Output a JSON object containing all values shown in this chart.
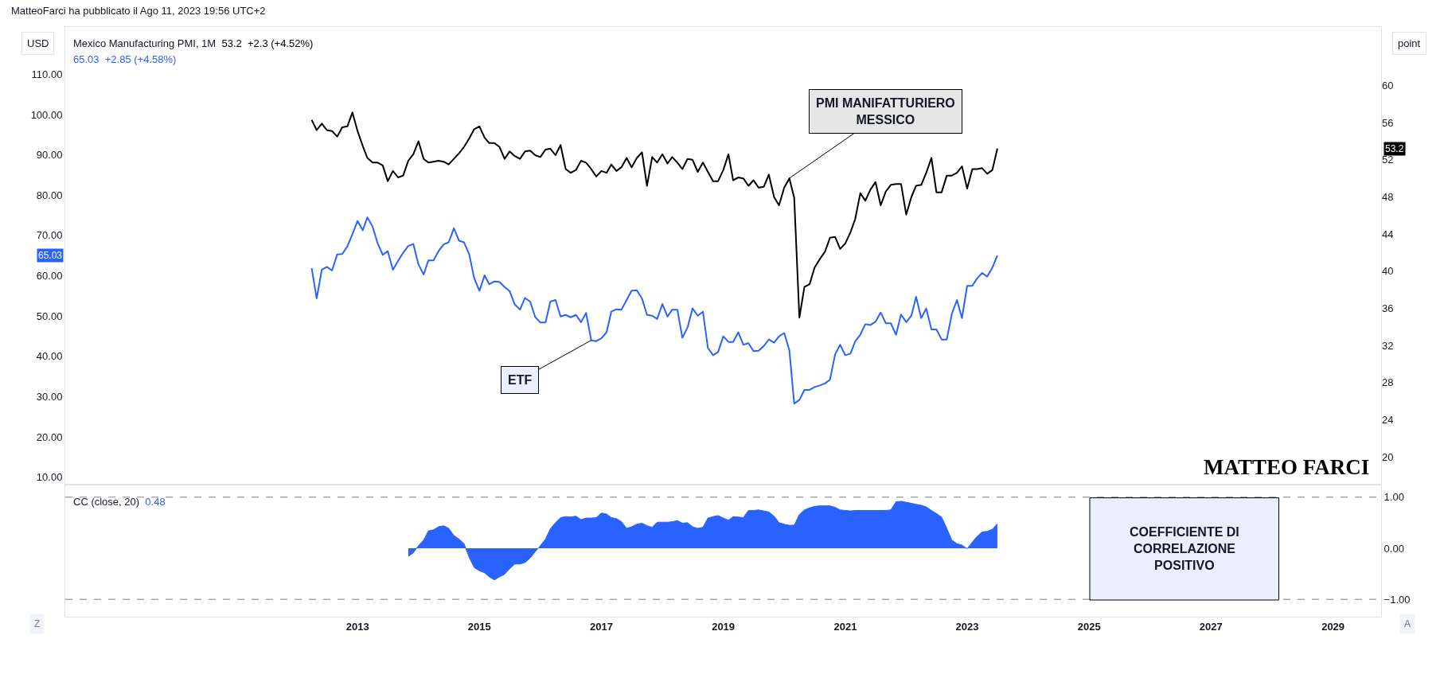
{
  "chart_data": [
    {
      "type": "line",
      "ylabel": "USD",
      "y2label": "point",
      "legend": "top left",
      "tick_labels": [
        "y",
        "y2"
      ],
      "annotations": [
        "53.2  +2.3 (+4.52%)",
        "65.03  +2.85 (+4.58%)",
        "MatteoFarci ha pubblicato il Ago 11, 2023 19:56 UTC+2",
        {
          "text": "PMI MANIFATTURIERO\nMESSICO",
          "x": "2020-02",
          "y": 84.2
        },
        {
          "text": "ETF",
          "x": "2016-11",
          "y": 44.0
        },
        "MATTEO FARCI",
        "53.2",
        "65.03"
      ],
      "x": [
        "2012-04",
        "2012-05",
        "2012-06",
        "2012-07",
        "2012-08",
        "2012-09",
        "2012-10",
        "2012-11",
        "2012-12",
        "2013-01",
        "2013-02",
        "2013-03",
        "2013-04",
        "2013-05",
        "2013-06",
        "2013-07",
        "2013-08",
        "2013-09",
        "2013-10",
        "2013-11",
        "2013-12",
        "2014-01",
        "2014-02",
        "2014-03",
        "2014-04",
        "2014-05",
        "2014-06",
        "2014-07",
        "2014-08",
        "2014-09",
        "2014-10",
        "2014-11",
        "2014-12",
        "2015-01",
        "2015-02",
        "2015-03",
        "2015-04",
        "2015-05",
        "2015-06",
        "2015-07",
        "2015-08",
        "2015-09",
        "2015-10",
        "2015-11",
        "2015-12",
        "2016-01",
        "2016-02",
        "2016-03",
        "2016-04",
        "2016-05",
        "2016-06",
        "2016-07",
        "2016-08",
        "2016-09",
        "2016-10",
        "2016-11",
        "2016-12",
        "2017-01",
        "2017-02",
        "2017-03",
        "2017-04",
        "2017-05",
        "2017-06",
        "2017-07",
        "2017-08",
        "2017-09",
        "2017-10",
        "2017-11",
        "2017-12",
        "2018-01",
        "2018-02",
        "2018-03",
        "2018-04",
        "2018-05",
        "2018-06",
        "2018-07",
        "2018-08",
        "2018-09",
        "2018-10",
        "2018-11",
        "2018-12",
        "2019-01",
        "2019-02",
        "2019-03",
        "2019-04",
        "2019-05",
        "2019-06",
        "2019-07",
        "2019-08",
        "2019-09",
        "2019-10",
        "2019-11",
        "2019-12",
        "2020-01",
        "2020-02",
        "2020-03",
        "2020-04",
        "2020-05",
        "2020-06",
        "2020-07",
        "2020-08",
        "2020-09",
        "2020-10",
        "2020-11",
        "2020-12",
        "2021-01",
        "2021-02",
        "2021-03",
        "2021-04",
        "2021-05",
        "2021-06",
        "2021-07",
        "2021-08",
        "2021-09",
        "2021-10",
        "2021-11",
        "2021-12",
        "2022-01",
        "2022-02",
        "2022-03",
        "2022-04",
        "2022-05",
        "2022-06",
        "2022-07",
        "2022-08",
        "2022-09",
        "2022-10",
        "2022-11",
        "2022-12",
        "2023-01",
        "2023-02",
        "2023-03",
        "2023-04",
        "2023-05",
        "2023-06",
        "2023-07"
      ],
      "xlim": [
        "2008-03-17",
        "2029-10-16"
      ],
      "ylim": [
        8.4,
        121.7
      ],
      "yticks": [
        {
          "value": 10,
          "label": "10.00"
        },
        {
          "value": 20,
          "label": "20.00"
        },
        {
          "value": 30,
          "label": "30.00"
        },
        {
          "value": 40,
          "label": "40.00"
        },
        {
          "value": 50,
          "label": "50.00"
        },
        {
          "value": 60,
          "label": "60.00"
        },
        {
          "value": 70,
          "label": "70.00"
        },
        {
          "value": 80,
          "label": "80.00"
        },
        {
          "value": 90,
          "label": "90.00"
        },
        {
          "value": 100,
          "label": "100.00"
        },
        {
          "value": 110,
          "label": "110.00"
        }
      ],
      "y2lim": [
        17.1,
        66.3
      ],
      "y2ticks": [
        20,
        24,
        28,
        32,
        36,
        40,
        44,
        48,
        52,
        56,
        60
      ],
      "series": [
        {
          "name": "Mexico Manufacturing PMI, 1M",
          "color": "#000000",
          "axis": "y2",
          "values": [
            56.3,
            55.2,
            55.9,
            55.2,
            55.1,
            54.5,
            55.5,
            55.6,
            57.1,
            55.1,
            53.5,
            52.2,
            51.7,
            51.7,
            51.4,
            49.7,
            50.8,
            50.1,
            50.3,
            51.9,
            52.6,
            54.0,
            52.1,
            51.7,
            51.8,
            51.9,
            51.8,
            51.5,
            52.1,
            52.7,
            53.4,
            54.3,
            55.3,
            55.6,
            54.4,
            53.8,
            53.8,
            53.4,
            52.1,
            52.9,
            52.4,
            52.1,
            52.9,
            53.0,
            52.5,
            52.3,
            53.1,
            53.2,
            52.5,
            53.6,
            51.0,
            50.6,
            50.9,
            51.9,
            51.7,
            51.0,
            50.2,
            50.8,
            50.6,
            51.5,
            50.8,
            51.2,
            52.2,
            51.2,
            52.2,
            52.8,
            49.2,
            52.3,
            51.7,
            52.6,
            51.6,
            52.3,
            51.7,
            51.0,
            52.1,
            52.0,
            50.7,
            51.7,
            50.7,
            49.7,
            49.7,
            50.9,
            52.6,
            49.8,
            50.1,
            50.0,
            49.2,
            49.8,
            49.0,
            49.1,
            50.4,
            48.0,
            47.1,
            49.0,
            50.0,
            47.9,
            35.0,
            38.3,
            38.6,
            40.4,
            41.3,
            42.1,
            43.6,
            43.7,
            42.4,
            43.0,
            44.2,
            45.6,
            48.4,
            47.6,
            48.8,
            49.6,
            47.1,
            48.6,
            49.3,
            49.4,
            49.4,
            46.1,
            48.0,
            49.2,
            49.3,
            50.6,
            52.2,
            48.5,
            48.5,
            50.3,
            50.3,
            50.6,
            51.3,
            48.9,
            51.0,
            51.0,
            51.1,
            50.5,
            50.9,
            53.2
          ]
        },
        {
          "color": "#2962ff",
          "values": [
            61.9,
            54.4,
            61.5,
            62.2,
            61.3,
            65.3,
            65.4,
            67.3,
            70.3,
            73.6,
            71.3,
            74.5,
            72.2,
            68.1,
            65.2,
            66.1,
            61.5,
            63.7,
            65.7,
            67.4,
            67.9,
            62.8,
            60.3,
            63.8,
            63.8,
            66.1,
            67.8,
            68.3,
            71.8,
            68.7,
            68.3,
            65.3,
            59.4,
            56.3,
            60.1,
            57.9,
            58.6,
            58.5,
            57.2,
            56.2,
            52.9,
            51.6,
            54.5,
            53.6,
            49.8,
            48.4,
            48.4,
            53.6,
            54.0,
            49.9,
            50.3,
            49.7,
            50.3,
            48.5,
            50.8,
            44.0,
            43.8,
            44.5,
            46.0,
            51.1,
            51.7,
            51.6,
            54.0,
            56.3,
            56.4,
            54.4,
            50.3,
            50.1,
            49.3,
            53.0,
            49.9,
            51.6,
            51.6,
            44.6,
            47.2,
            51.9,
            50.1,
            51.1,
            42.1,
            40.3,
            41.1,
            45.0,
            43.6,
            43.6,
            46.0,
            42.9,
            43.3,
            41.3,
            41.4,
            42.6,
            44.2,
            43.4,
            45.0,
            45.8,
            41.5,
            28.3,
            29.2,
            31.7,
            31.7,
            32.4,
            32.8,
            33.3,
            34.2,
            40.5,
            42.9,
            40.3,
            40.7,
            43.7,
            45.4,
            48.0,
            47.8,
            48.6,
            50.9,
            48.2,
            48.2,
            45.4,
            50.4,
            48.5,
            50.1,
            54.8,
            49.5,
            51.9,
            46.7,
            46.7,
            44.2,
            44.2,
            50.5,
            54.0,
            49.5,
            57.5,
            57.5,
            59.3,
            60.7,
            59.8,
            62.0,
            65.03
          ]
        }
      ]
    },
    {
      "type": "area",
      "legend": "top left",
      "annotations": [
        "0.48",
        "COEFFICIENTE DI\nCORRELAZIONE\nPOSITIVO",
        "Z",
        "A"
      ],
      "x": [
        "2013-11",
        "2013-12",
        "2014-01",
        "2014-02",
        "2014-03",
        "2014-04",
        "2014-05",
        "2014-06",
        "2014-07",
        "2014-08",
        "2014-09",
        "2014-10",
        "2014-11",
        "2014-12",
        "2015-01",
        "2015-02",
        "2015-03",
        "2015-04",
        "2015-05",
        "2015-06",
        "2015-07",
        "2015-08",
        "2015-09",
        "2015-10",
        "2015-11",
        "2015-12",
        "2016-01",
        "2016-02",
        "2016-03",
        "2016-04",
        "2016-05",
        "2016-06",
        "2016-07",
        "2016-08",
        "2016-09",
        "2016-10",
        "2016-11",
        "2016-12",
        "2017-01",
        "2017-02",
        "2017-03",
        "2017-04",
        "2017-05",
        "2017-06",
        "2017-07",
        "2017-08",
        "2017-09",
        "2017-10",
        "2017-11",
        "2017-12",
        "2018-01",
        "2018-02",
        "2018-03",
        "2018-04",
        "2018-05",
        "2018-06",
        "2018-07",
        "2018-08",
        "2018-09",
        "2018-10",
        "2018-11",
        "2018-12",
        "2019-01",
        "2019-02",
        "2019-03",
        "2019-04",
        "2019-05",
        "2019-06",
        "2019-07",
        "2019-08",
        "2019-09",
        "2019-10",
        "2019-11",
        "2019-12",
        "2020-01",
        "2020-02",
        "2020-03",
        "2020-04",
        "2020-05",
        "2020-06",
        "2020-07",
        "2020-08",
        "2020-09",
        "2020-10",
        "2020-11",
        "2020-12",
        "2021-01",
        "2021-02",
        "2021-03",
        "2021-04",
        "2021-05",
        "2021-06",
        "2021-07",
        "2021-08",
        "2021-09",
        "2021-10",
        "2021-11",
        "2021-12",
        "2022-01",
        "2022-02",
        "2022-03",
        "2022-04",
        "2022-05",
        "2022-06",
        "2022-07",
        "2022-08",
        "2022-09",
        "2022-10",
        "2022-11",
        "2022-12",
        "2023-01",
        "2023-02",
        "2023-03",
        "2023-04",
        "2023-05",
        "2023-06",
        "2023-07"
      ],
      "xlim": [
        "2008-03-17",
        "2029-10-16"
      ],
      "xticks": [
        "2013",
        "2015",
        "2017",
        "2019",
        "2021",
        "2023",
        "2025",
        "2027",
        "2029"
      ],
      "ylim": [
        -1.34,
        1.23
      ],
      "yticks": [
        {
          "value": 1,
          "label": "1.00"
        },
        {
          "value": 0,
          "label": "0.00"
        },
        {
          "value": -1,
          "label": "−1.00"
        }
      ],
      "ref_lines": [
        {
          "axis": "y",
          "value": 1,
          "color": "#787b86",
          "line_style": "dashed"
        },
        {
          "axis": "y",
          "value": -1,
          "color": "#787b86",
          "line_style": "dashed"
        }
      ],
      "series": [
        {
          "name": "CC (close, 20)",
          "color": "#2962ff",
          "values": [
            -0.16,
            -0.09,
            0.05,
            0.16,
            0.34,
            0.36,
            0.42,
            0.44,
            0.39,
            0.25,
            0.18,
            0.09,
            -0.18,
            -0.38,
            -0.44,
            -0.48,
            -0.56,
            -0.62,
            -0.56,
            -0.51,
            -0.4,
            -0.31,
            -0.31,
            -0.28,
            -0.19,
            -0.07,
            0.05,
            0.18,
            0.38,
            0.5,
            0.6,
            0.62,
            0.61,
            0.63,
            0.56,
            0.59,
            0.59,
            0.6,
            0.69,
            0.67,
            0.6,
            0.58,
            0.52,
            0.39,
            0.42,
            0.47,
            0.49,
            0.44,
            0.41,
            0.51,
            0.51,
            0.51,
            0.52,
            0.54,
            0.49,
            0.5,
            0.42,
            0.39,
            0.41,
            0.59,
            0.62,
            0.64,
            0.59,
            0.55,
            0.62,
            0.61,
            0.6,
            0.74,
            0.74,
            0.75,
            0.73,
            0.71,
            0.63,
            0.5,
            0.47,
            0.45,
            0.45,
            0.66,
            0.75,
            0.79,
            0.82,
            0.83,
            0.83,
            0.83,
            0.8,
            0.75,
            0.74,
            0.73,
            0.74,
            0.74,
            0.74,
            0.74,
            0.74,
            0.74,
            0.74,
            0.75,
            0.91,
            0.92,
            0.9,
            0.88,
            0.86,
            0.84,
            0.81,
            0.74,
            0.68,
            0.61,
            0.39,
            0.16,
            0.09,
            0.06,
            -0.01,
            0.12,
            0.23,
            0.32,
            0.33,
            0.37,
            0.48
          ]
        }
      ]
    }
  ]
}
